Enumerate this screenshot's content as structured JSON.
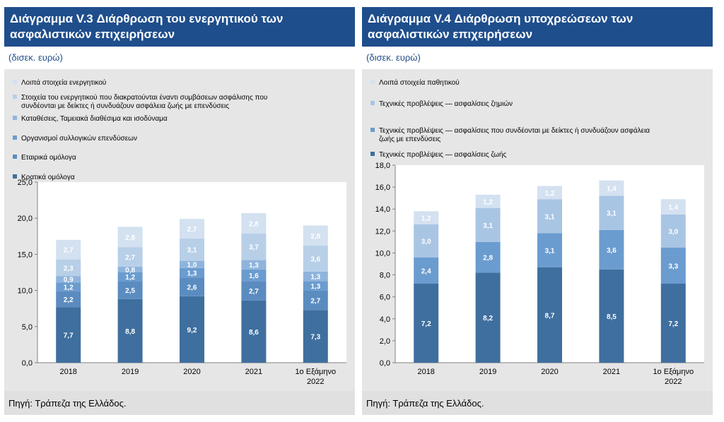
{
  "left": {
    "title": "Διάγραμμα V.3 Διάρθρωση του ενεργητικού των ασφαλιστικών επιχειρήσεων",
    "unit": "(δισεκ. ευρώ)",
    "source": "Πηγή: Τράπεζα της Ελλάδος."
  },
  "right": {
    "title": "Διάγραμμα V.4 Διάρθρωση υποχρεώσεων των ασφαλιστικών επιχειρήσεων",
    "unit": "(δισεκ. ευρώ)",
    "source": "Πηγή: Τράπεζα της Ελλάδος."
  },
  "chart_data": [
    {
      "type": "bar",
      "stacked": true,
      "title": "Διάγραμμα V.3 Διάρθρωση του ενεργητικού των ασφαλιστικών επιχειρήσεων",
      "categories": [
        [
          "2018"
        ],
        [
          "2019"
        ],
        [
          "2020"
        ],
        [
          "2021"
        ],
        [
          "1ο Εξάμηνο",
          "2022"
        ]
      ],
      "ylim": [
        0,
        25
      ],
      "yticks": [
        "0,0",
        "5,0",
        "10,0",
        "15,0",
        "20,0",
        "25,0"
      ],
      "legend_placement": "top-left",
      "series": [
        {
          "name": "Κρατικά ομόλογα",
          "color": "#3f6f9f",
          "label_color": "#ffffff",
          "values": [
            7.7,
            8.8,
            9.2,
            8.6,
            7.3
          ],
          "labels": [
            "7,7",
            "8,8",
            "9,2",
            "8,6",
            "7,3"
          ]
        },
        {
          "name": "Εταιρικά ομόλογα",
          "color": "#5b8cc0",
          "label_color": "#ffffff",
          "values": [
            2.2,
            2.5,
            2.6,
            2.7,
            2.7
          ],
          "labels": [
            "2,2",
            "2,5",
            "2,6",
            "2,7",
            "2,7"
          ]
        },
        {
          "name": "Οργανισμοί συλλογικών επενδύσεων",
          "color": "#6b9ccf",
          "label_color": "#ffffff",
          "values": [
            1.2,
            1.2,
            1.3,
            1.6,
            1.3
          ],
          "labels": [
            "1,2",
            "1,2",
            "1,3",
            "1,6",
            "1,3"
          ]
        },
        {
          "name": "Καταθέσεις, Ταμειακά διαθέσιμα και ισοδύναμα",
          "color": "#8fb4dc",
          "label_color": "#ffffff",
          "values": [
            0.9,
            0.8,
            1.0,
            1.3,
            1.3
          ],
          "labels": [
            "0,9",
            "0,8",
            "1,0",
            "1,3",
            "1,3"
          ]
        },
        {
          "name": "Στοιχεία του ενεργητικού που διακρατούνται έναντι συμβάσεων ασφάλισης που συνδέονται με δείκτες ή συνδυάζουν ασφάλεια ζωής με επενδύσεις",
          "color": "#b8cfe8",
          "label_color": "#ffffff",
          "values": [
            2.3,
            2.7,
            3.1,
            3.7,
            3.6
          ],
          "labels": [
            "2,3",
            "2,7",
            "3,1",
            "3,7",
            "3,6"
          ]
        },
        {
          "name": "Λοιπά στοιχεία ενεργητικού",
          "color": "#d3e1f0",
          "label_color": "#ffffff",
          "values": [
            2.7,
            2.8,
            2.7,
            2.8,
            2.8
          ],
          "labels": [
            "2,7",
            "2,8",
            "2,7",
            "2,8",
            "2,8"
          ]
        }
      ]
    },
    {
      "type": "bar",
      "stacked": true,
      "title": "Διάγραμμα V.4 Διάρθρωση υποχρεώσεων των ασφαλιστικών επιχειρήσεων",
      "categories": [
        [
          "2018"
        ],
        [
          "2019"
        ],
        [
          "2020"
        ],
        [
          "2021"
        ],
        [
          "1ο Εξάμηνο",
          "2022"
        ]
      ],
      "ylim": [
        0,
        18
      ],
      "yticks": [
        "0,0",
        "2,0",
        "4,0",
        "6,0",
        "8,0",
        "10,0",
        "12,0",
        "14,0",
        "16,0",
        "18,0"
      ],
      "legend_placement": "top-left",
      "series": [
        {
          "name": "Τεχνικές προβλέψεις — ασφαλίσεις ζωής",
          "color": "#3f6f9f",
          "label_color": "#ffffff",
          "values": [
            7.2,
            8.2,
            8.7,
            8.5,
            7.2
          ],
          "labels": [
            "7,2",
            "8,2",
            "8,7",
            "8,5",
            "7,2"
          ]
        },
        {
          "name": "Τεχνικές προβλέψεις — ασφαλίσεις που συνδέονται με δείκτες ή συνδυάζουν ασφάλεια ζωής με επενδύσεις",
          "color": "#6b9ccf",
          "label_color": "#ffffff",
          "values": [
            2.4,
            2.8,
            3.1,
            3.6,
            3.3
          ],
          "labels": [
            "2,4",
            "2,8",
            "3,1",
            "3,6",
            "3,3"
          ]
        },
        {
          "name": "Τεχνικές προβλέψεις — ασφαλίσεις ζημιών",
          "color": "#a9c5e4",
          "label_color": "#ffffff",
          "values": [
            3.0,
            3.1,
            3.1,
            3.1,
            3.0
          ],
          "labels": [
            "3,0",
            "3,1",
            "3,1",
            "3,1",
            "3,0"
          ]
        },
        {
          "name": "Λοιπά στοιχεία παθητικού",
          "color": "#d3e1f0",
          "label_color": "#ffffff",
          "values": [
            1.2,
            1.2,
            1.2,
            1.4,
            1.4
          ],
          "labels": [
            "1,2",
            "1,2",
            "1,2",
            "1,4",
            "1,4"
          ]
        }
      ]
    }
  ]
}
